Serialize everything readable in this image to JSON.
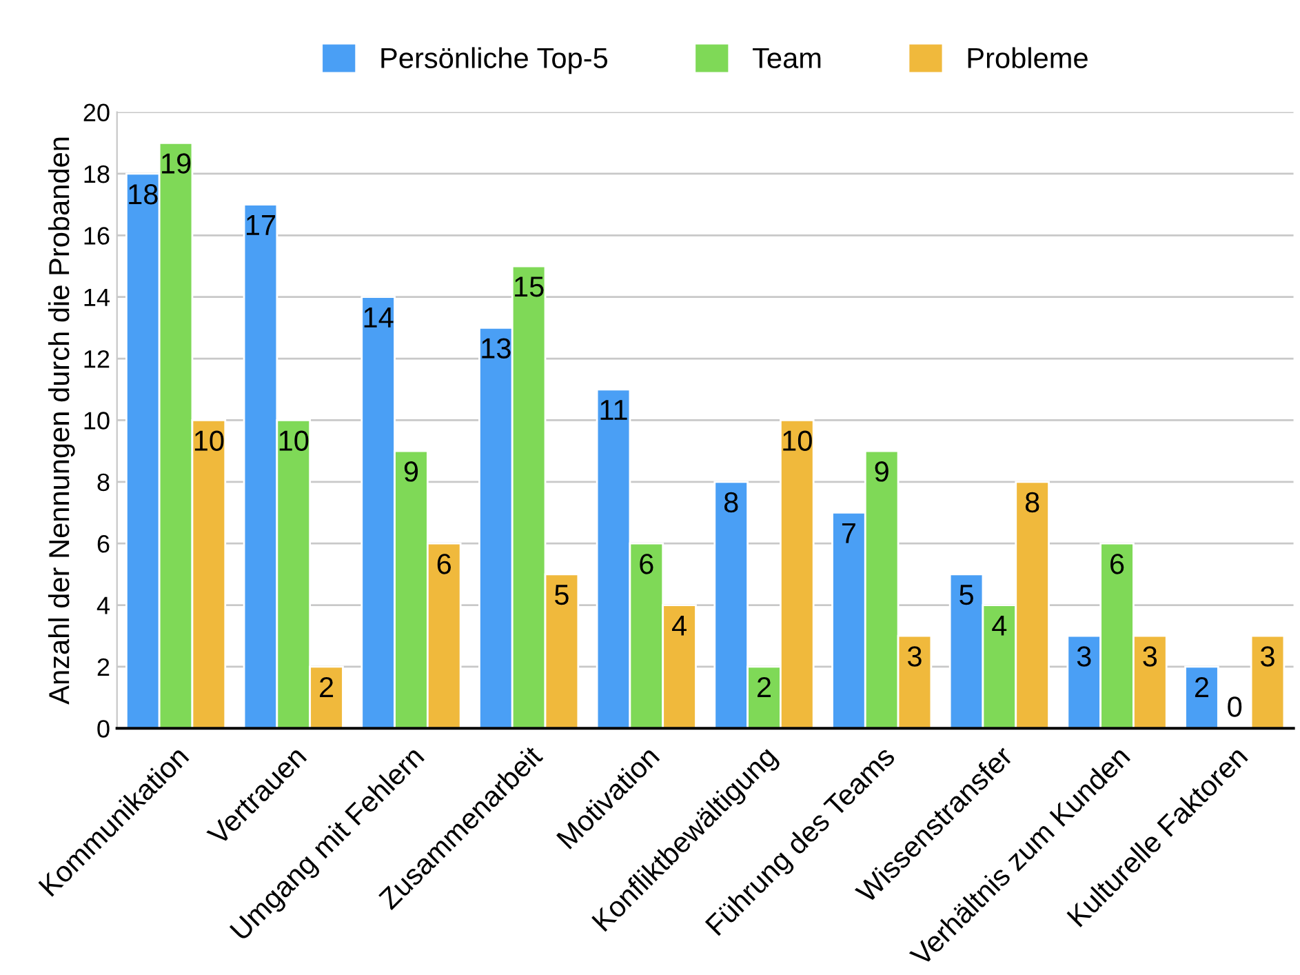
{
  "chart_data": {
    "type": "bar",
    "ylabel": "Anzahl der Nennungen durch die Probanden",
    "categories": [
      "Kommunikation",
      "Vertrauen",
      "Umgang mit Fehlern",
      "Zusammenarbeit",
      "Motivation",
      "Konfliktbewältigung",
      "Führung des Teams",
      "Wissenstransfer",
      "Verhältnis zum Kunden",
      "Kulturelle Faktoren"
    ],
    "series": [
      {
        "name": "Persönliche Top-5",
        "color": "#4a9ff5",
        "values": [
          18,
          17,
          14,
          13,
          11,
          8,
          7,
          5,
          3,
          2
        ]
      },
      {
        "name": "Team",
        "color": "#7fd957",
        "values": [
          19,
          10,
          9,
          15,
          6,
          2,
          9,
          4,
          6,
          0
        ]
      },
      {
        "name": "Probleme",
        "color": "#f0b93c",
        "values": [
          10,
          2,
          6,
          5,
          4,
          10,
          3,
          8,
          3,
          3
        ]
      }
    ],
    "ylim": [
      0,
      20
    ],
    "yticks": [
      0,
      2,
      4,
      6,
      8,
      10,
      12,
      14,
      16,
      18,
      20
    ],
    "grid": "y",
    "legend": "top",
    "data_labels": true
  }
}
